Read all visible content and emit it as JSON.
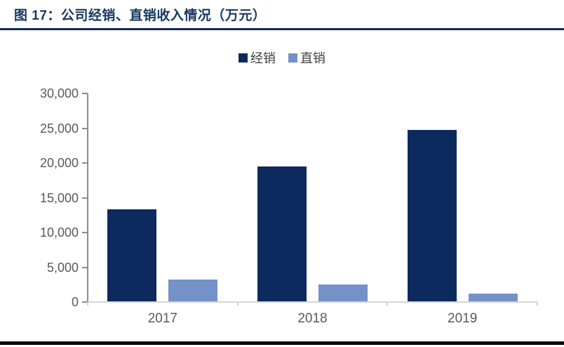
{
  "figure": {
    "title": "图 17：公司经销、直销收入情况（万元）"
  },
  "chart_data": {
    "type": "bar",
    "title": "公司经销、直销收入情况（万元）",
    "categories": [
      "2017",
      "2018",
      "2019"
    ],
    "series": [
      {
        "name": "经销",
        "color": "#0D2A5E",
        "values": [
          13200,
          19400,
          24700
        ]
      },
      {
        "name": "直销",
        "color": "#7491C8",
        "values": [
          3100,
          2450,
          1100
        ]
      }
    ],
    "ylim": [
      0,
      30000
    ],
    "ytick_interval": 5000,
    "ytick_labels": [
      "30,000",
      "25,000",
      "20,000",
      "15,000",
      "10,000",
      "5,000",
      "0"
    ],
    "xlabel": "",
    "ylabel": "",
    "grid": false,
    "legend_position": "top-center"
  },
  "colors": {
    "title": "#17375E",
    "title_rule": "#122A50",
    "bottom_rule": "#0A0A0A",
    "axis_line": "#8C8C8C",
    "baseline": "#D6D6D6",
    "tick_text": "#595959",
    "legend_text": "#404040"
  }
}
